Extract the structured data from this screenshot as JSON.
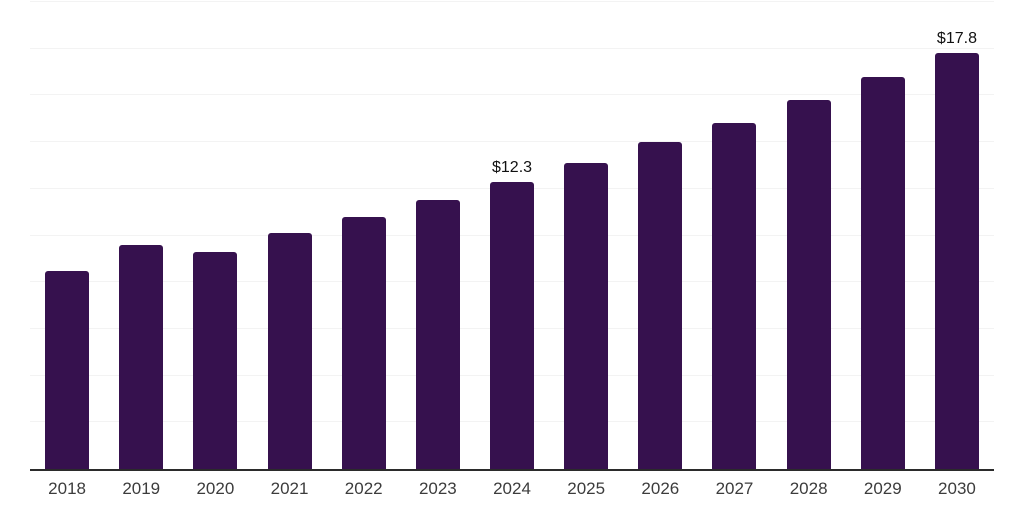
{
  "chart_data": {
    "type": "bar",
    "title": "",
    "xlabel": "",
    "ylabel": "",
    "categories": [
      "2018",
      "2019",
      "2020",
      "2021",
      "2022",
      "2023",
      "2024",
      "2025",
      "2026",
      "2027",
      "2028",
      "2029",
      "2030"
    ],
    "values": [
      8.5,
      9.6,
      9.3,
      10.1,
      10.8,
      11.5,
      12.3,
      13.1,
      14.0,
      14.8,
      15.8,
      16.8,
      17.8
    ],
    "point_labels": {
      "2024": "$12.3",
      "2030": "$17.8"
    },
    "ylim": [
      0,
      20
    ],
    "grid_step": 2,
    "grid": "horizontal-only",
    "legend_position": "none",
    "colors": {
      "bar": "#36114E",
      "gridline": "#f3f3f3",
      "axis_line": "#2b2b2b",
      "tick_label": "#3c3c3c",
      "value_label": "#111111",
      "background": "#ffffff"
    }
  }
}
